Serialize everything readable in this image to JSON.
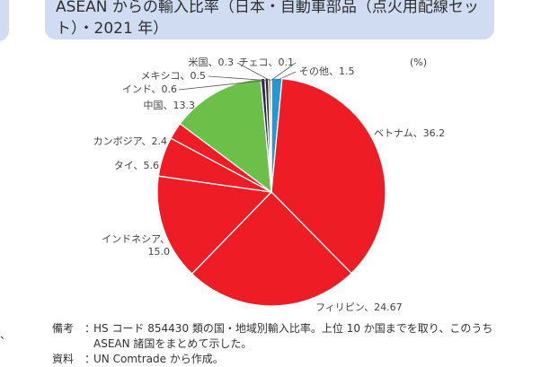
{
  "title": "ASEAN からの輸入比率（日本・自動車部品（点火用配線セット）・2021 年）",
  "unit": "(%)",
  "chart_data": {
    "type": "pie",
    "start": "12 o'clock",
    "direction": "clockwise",
    "slices": [
      {
        "label": "その他、1.5",
        "name": "その他",
        "value": 1.5,
        "color": "#1f9ad6"
      },
      {
        "label": "ベトナム、36.2",
        "name": "ベトナム",
        "value": 36.2,
        "color": "#ee1c25"
      },
      {
        "label": "フィリピン、24.67",
        "name": "フィリピン",
        "value": 24.67,
        "color": "#ee1c25"
      },
      {
        "label": "インドネシア、\n15.0",
        "name": "インドネシア",
        "value": 15.0,
        "color": "#ee1c25"
      },
      {
        "label": "タイ、5.6",
        "name": "タイ",
        "value": 5.6,
        "color": "#ee1c25"
      },
      {
        "label": "カンボジア、2.4",
        "name": "カンボジア",
        "value": 2.4,
        "color": "#ee1c25"
      },
      {
        "label": "中国、13.3",
        "name": "中国",
        "value": 13.3,
        "color": "#6cc04a"
      },
      {
        "label": "インド、0.6",
        "name": "インド",
        "value": 0.6,
        "color": "#202a5c"
      },
      {
        "label": "メキシコ、0.5",
        "name": "メキシコ",
        "value": 0.5,
        "color": "#3d2a1e"
      },
      {
        "label": "米国、0.3",
        "name": "米国",
        "value": 0.3,
        "color": "#6a3d1f"
      },
      {
        "label": "チェコ、0.1",
        "name": "チェコ",
        "value": 0.1,
        "color": "#ffffff"
      }
    ]
  },
  "notes": {
    "note_key": "備考",
    "note_text": "HS コード 854430 類の国・地域別輸入比率。上位 10 か国までを取り、このうち ASEAN 諸国をまとめて示した。",
    "source_key": "資料",
    "source_text": "UN Comtrade から作成。"
  }
}
